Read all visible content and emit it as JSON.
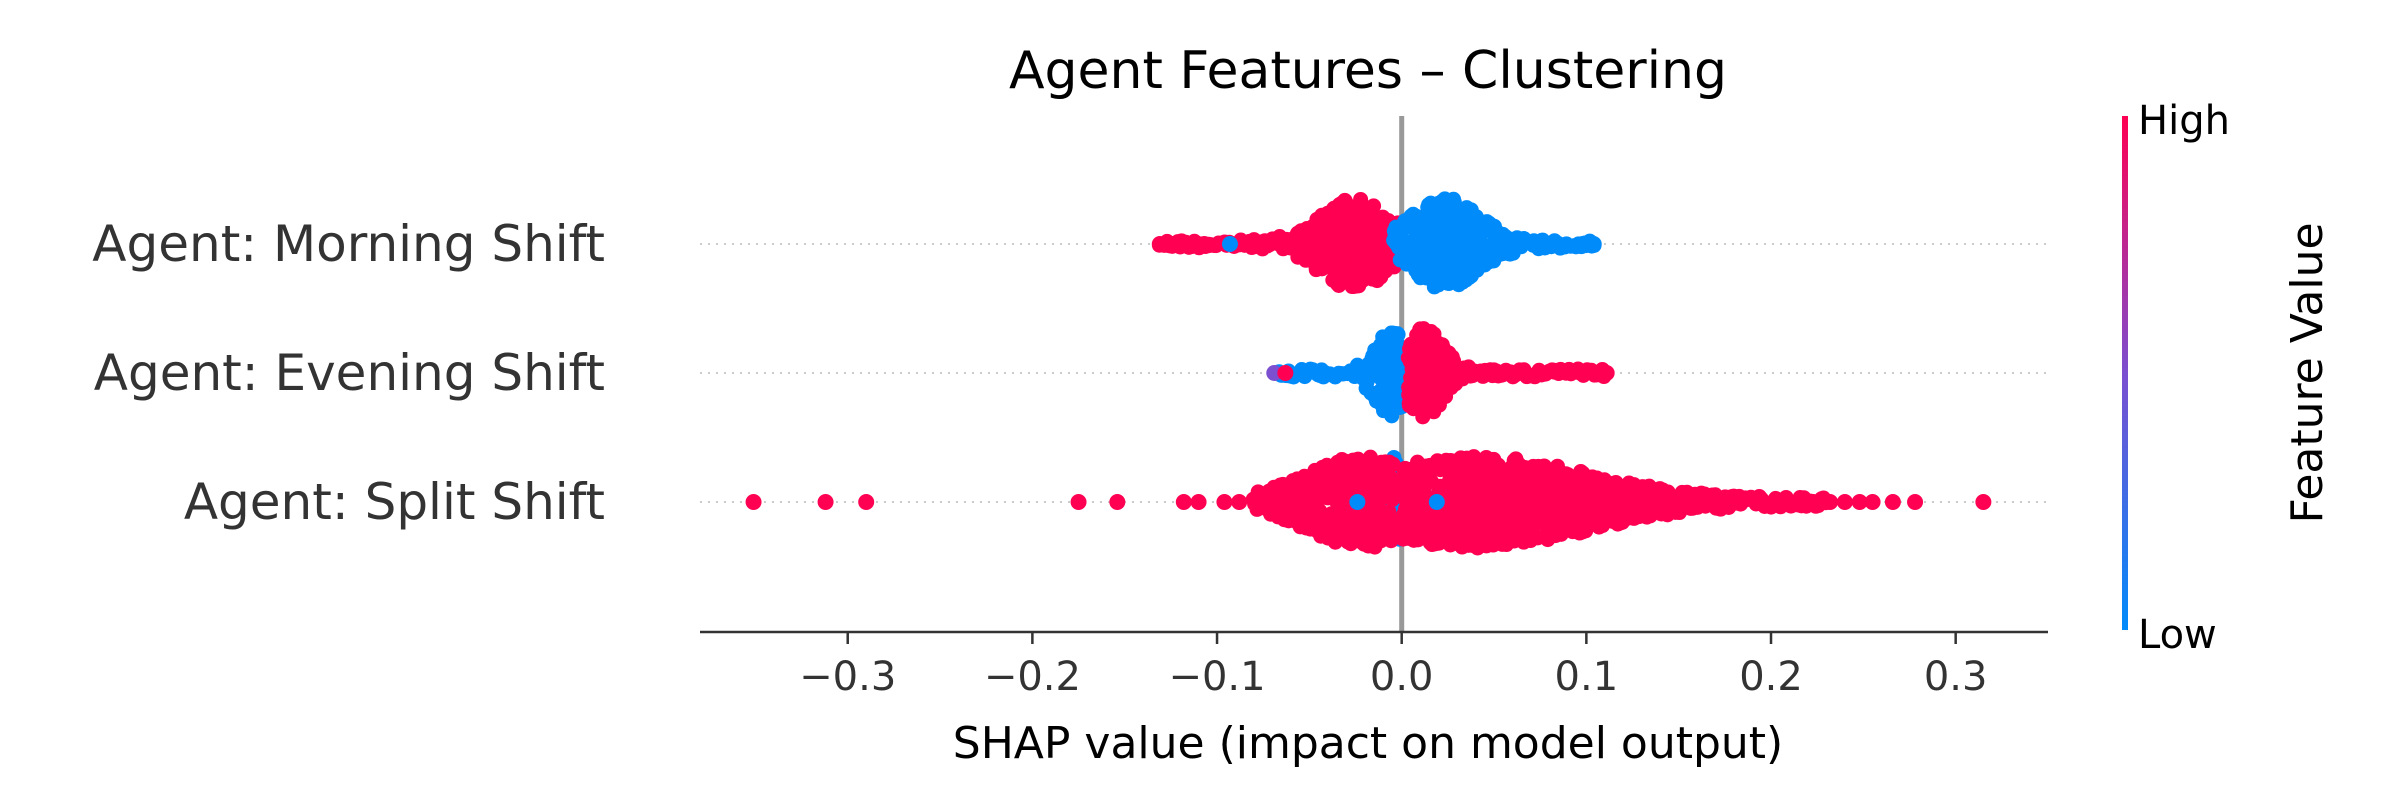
{
  "chart_data": {
    "type": "scatter",
    "subtype": "shap-beeswarm",
    "title": "Agent Features – Clustering",
    "xlabel": "SHAP value (impact on model output)",
    "xlim": [
      -0.38,
      0.35
    ],
    "xticks": [
      -0.3,
      -0.2,
      -0.1,
      0.0,
      0.1,
      0.2,
      0.3
    ],
    "xtick_labels": [
      "−0.3",
      "−0.2",
      "−0.1",
      "0.0",
      "0.1",
      "0.2",
      "0.3"
    ],
    "colorbar": {
      "title": "Feature Value",
      "high_label": "High",
      "low_label": "Low"
    },
    "colors": {
      "high": "#ff0052",
      "low": "#008bfb",
      "mid": "#7b4fd0",
      "zero_line": "#999999",
      "grid": "#cccccc",
      "axis": "#333333"
    },
    "features": [
      {
        "name": "Agent: Morning Shift",
        "clusters": [
          {
            "value": "high",
            "x_range": [
              -0.131,
              -0.002
            ],
            "peak": -0.026,
            "width": 0.018
          },
          {
            "value": "low",
            "x_range": [
              -0.004,
              0.104
            ],
            "peak": 0.024,
            "width": 0.018
          }
        ],
        "points": [
          {
            "x": -0.131,
            "value": "high"
          },
          {
            "x": -0.124,
            "value": "high"
          },
          {
            "x": -0.118,
            "value": "high"
          },
          {
            "x": -0.111,
            "value": "high"
          },
          {
            "x": -0.093,
            "value": "low"
          },
          {
            "x": 0.104,
            "value": "low"
          },
          {
            "x": 0.098,
            "value": "low"
          }
        ]
      },
      {
        "name": "Agent: Evening Shift",
        "clusters": [
          {
            "value": "low",
            "x_range": [
              -0.068,
              0.0
            ],
            "peak": -0.006,
            "width": 0.008
          },
          {
            "value": "high",
            "x_range": [
              0.004,
              0.111
            ],
            "peak": 0.012,
            "width": 0.01
          }
        ],
        "points": [
          {
            "x": -0.069,
            "value": "mid"
          },
          {
            "x": -0.063,
            "value": "high"
          },
          {
            "x": 0.111,
            "value": "high"
          },
          {
            "x": 0.104,
            "value": "high"
          },
          {
            "x": 0.097,
            "value": "high"
          },
          {
            "x": 0.085,
            "value": "high"
          }
        ]
      },
      {
        "name": "Agent: Split Shift",
        "clusters": [
          {
            "value": "low",
            "x_range": [
              -0.007,
              0.005
            ],
            "peak": -0.003,
            "width": 0.003
          },
          {
            "value": "high",
            "x_range": [
              0.0,
              0.23
            ],
            "peak": 0.04,
            "width": 0.06
          },
          {
            "value": "high",
            "x_range": [
              -0.08,
              -0.005
            ],
            "peak": -0.02,
            "width": 0.03
          }
        ],
        "points": [
          {
            "x": -0.351,
            "value": "high"
          },
          {
            "x": -0.312,
            "value": "high"
          },
          {
            "x": -0.29,
            "value": "high"
          },
          {
            "x": -0.175,
            "value": "high"
          },
          {
            "x": -0.154,
            "value": "high"
          },
          {
            "x": -0.118,
            "value": "high"
          },
          {
            "x": -0.11,
            "value": "high"
          },
          {
            "x": -0.096,
            "value": "high"
          },
          {
            "x": -0.088,
            "value": "high"
          },
          {
            "x": -0.078,
            "value": "high"
          },
          {
            "x": -0.024,
            "value": "low"
          },
          {
            "x": 0.019,
            "value": "low"
          },
          {
            "x": 0.232,
            "value": "high"
          },
          {
            "x": 0.24,
            "value": "high"
          },
          {
            "x": 0.248,
            "value": "high"
          },
          {
            "x": 0.255,
            "value": "high"
          },
          {
            "x": 0.266,
            "value": "high"
          },
          {
            "x": 0.278,
            "value": "high"
          },
          {
            "x": 0.315,
            "value": "high"
          }
        ]
      }
    ]
  }
}
